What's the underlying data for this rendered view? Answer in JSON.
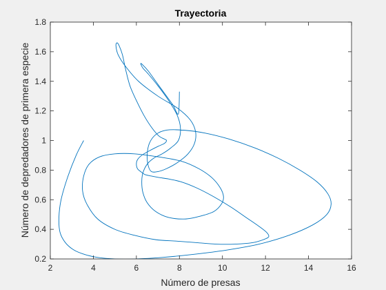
{
  "colors": {
    "figure_background": "#f0f0f0",
    "axes_background": "#ffffff",
    "axes_color": "#262626",
    "line": "#0072bd"
  },
  "chart_data": {
    "type": "line",
    "title": "Trayectoria",
    "xlabel": "Número de presas",
    "ylabel": "Número de depredadores de primera especie",
    "xlim": [
      2,
      16
    ],
    "ylim": [
      0.2,
      1.8
    ],
    "xticks": [
      2,
      4,
      6,
      8,
      10,
      12,
      14,
      16
    ],
    "yticks": [
      0.2,
      0.4,
      0.6,
      0.8,
      1,
      1.2,
      1.4,
      1.6,
      1.8
    ],
    "grid": false,
    "legend": "none",
    "series": [
      {
        "x": [
          3.55,
          3.2,
          2.8,
          2.5,
          2.4,
          2.45,
          2.7,
          3.1,
          3.6,
          4.2,
          5.0,
          6.0,
          7.2,
          8.6,
          10.2,
          11.7,
          13.1,
          14.2,
          14.85,
          15.05,
          14.9,
          14.4,
          13.6,
          12.6,
          11.5,
          10.3,
          9.2,
          8.2,
          7.4,
          6.9,
          6.6,
          6.5,
          6.55,
          6.7,
          7.0,
          7.4,
          7.9,
          8.4,
          8.7,
          8.75,
          8.5,
          7.9,
          7.0,
          6.1,
          5.5,
          5.15,
          5.05,
          5.1,
          5.2,
          5.35,
          5.5,
          5.7,
          6.0,
          6.35,
          6.7,
          7.05,
          7.3,
          7.4,
          7.3,
          7.0,
          6.6,
          6.25,
          6.05,
          6.0,
          6.05,
          6.2,
          6.4,
          6.7,
          7.05,
          7.5,
          8.1,
          8.8,
          9.6,
          10.4,
          11.1,
          11.7,
          12.05,
          12.15,
          11.9,
          11.4,
          10.6,
          9.7,
          8.8,
          7.9,
          6.9,
          5.9,
          5.0,
          4.2,
          3.7,
          3.5,
          3.55,
          3.8,
          4.3,
          5.0,
          5.9,
          7.0,
          8.1,
          8.9,
          9.5,
          9.9,
          10.05,
          9.95,
          9.6,
          9.0,
          8.3,
          7.5,
          6.9,
          6.5,
          6.3,
          6.25,
          6.3,
          6.5,
          6.8,
          7.2,
          7.6,
          7.95,
          8.05,
          7.9,
          7.5,
          7.0,
          6.55,
          6.3,
          6.2,
          6.3,
          6.55,
          6.9,
          7.3,
          7.7,
          7.95,
          8.0
        ],
        "y": [
          1.0,
          0.9,
          0.75,
          0.6,
          0.48,
          0.38,
          0.31,
          0.26,
          0.23,
          0.21,
          0.2,
          0.2,
          0.21,
          0.23,
          0.26,
          0.3,
          0.36,
          0.43,
          0.5,
          0.57,
          0.64,
          0.72,
          0.8,
          0.88,
          0.95,
          1.01,
          1.05,
          1.07,
          1.07,
          1.04,
          0.98,
          0.9,
          0.83,
          0.79,
          0.79,
          0.81,
          0.85,
          0.91,
          0.98,
          1.06,
          1.14,
          1.22,
          1.3,
          1.4,
          1.5,
          1.58,
          1.64,
          1.66,
          1.64,
          1.58,
          1.48,
          1.37,
          1.27,
          1.17,
          1.09,
          1.03,
          1.01,
          1.0,
          0.98,
          0.96,
          0.93,
          0.9,
          0.87,
          0.84,
          0.81,
          0.79,
          0.77,
          0.76,
          0.75,
          0.74,
          0.72,
          0.68,
          0.62,
          0.55,
          0.48,
          0.42,
          0.38,
          0.35,
          0.33,
          0.31,
          0.3,
          0.3,
          0.31,
          0.32,
          0.33,
          0.36,
          0.4,
          0.47,
          0.57,
          0.66,
          0.76,
          0.84,
          0.89,
          0.91,
          0.91,
          0.89,
          0.86,
          0.81,
          0.75,
          0.68,
          0.62,
          0.57,
          0.52,
          0.49,
          0.47,
          0.48,
          0.52,
          0.58,
          0.65,
          0.72,
          0.78,
          0.84,
          0.88,
          0.91,
          0.95,
          1.0,
          1.08,
          1.17,
          1.27,
          1.37,
          1.45,
          1.49,
          1.52,
          1.51,
          1.47,
          1.4,
          1.32,
          1.24,
          1.18,
          1.33
        ]
      }
    ]
  }
}
